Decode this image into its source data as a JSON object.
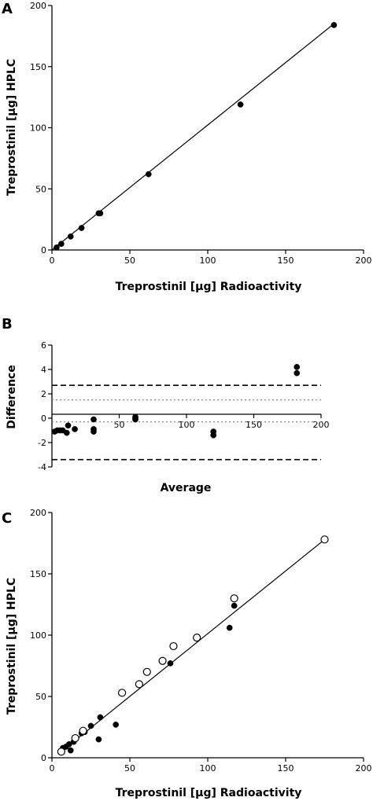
{
  "chart_data": [
    {
      "panel": "A",
      "type": "scatter",
      "xlabel": "Treprostinil [µg] Radioactivity",
      "ylabel": "Treprostinil [µg] HPLC",
      "xlim": [
        0,
        200
      ],
      "ylim": [
        0,
        200
      ],
      "xticks": [
        0,
        50,
        100,
        150,
        200
      ],
      "yticks": [
        0,
        50,
        100,
        150,
        200
      ],
      "grid": false,
      "fit_line": {
        "x": [
          0,
          180
        ],
        "y": [
          0,
          184
        ]
      },
      "series": [
        {
          "marker": "filled",
          "x": [
            3,
            6,
            12,
            19,
            30,
            31,
            62,
            121,
            181
          ],
          "y": [
            2,
            5,
            11,
            18,
            30,
            30,
            62,
            119,
            184
          ]
        }
      ]
    },
    {
      "panel": "B",
      "type": "scatter",
      "xlabel": "Average",
      "ylabel": "Difference",
      "xlim": [
        0,
        200
      ],
      "ylim": [
        -4,
        6
      ],
      "xticks": [
        50,
        100,
        150,
        200
      ],
      "yticks": [
        -4,
        -2,
        0,
        2,
        4,
        6
      ],
      "grid": false,
      "reference_lines": [
        {
          "y": 2.7,
          "style": "dashed"
        },
        {
          "y": 1.5,
          "style": "dotted"
        },
        {
          "y": -0.3,
          "style": "dotted"
        },
        {
          "y": -3.4,
          "style": "dashed"
        }
      ],
      "series": [
        {
          "marker": "filled",
          "x": [
            2,
            4,
            6,
            8,
            11,
            12,
            17,
            31,
            31,
            31,
            62,
            62,
            62,
            120,
            120,
            182,
            182
          ],
          "y": [
            -1.1,
            -1.0,
            -1.0,
            -1.0,
            -1.2,
            -0.6,
            -0.9,
            -0.1,
            -0.9,
            -1.1,
            0.1,
            0.0,
            -0.1,
            -1.1,
            -1.4,
            4.2,
            3.7
          ]
        }
      ]
    },
    {
      "panel": "C",
      "type": "scatter",
      "xlabel": "Treprostinil [µg] Radioactivity",
      "ylabel": "Treprostinil [µg] HPLC",
      "xlim": [
        0,
        200
      ],
      "ylim": [
        0,
        200
      ],
      "xticks": [
        0,
        50,
        100,
        150,
        200
      ],
      "yticks": [
        0,
        50,
        100,
        150,
        200
      ],
      "grid": false,
      "fit_line": {
        "x": [
          4,
          177
        ],
        "y": [
          3,
          180
        ]
      },
      "series": [
        {
          "marker": "filled",
          "x": [
            7,
            9,
            11,
            12,
            14,
            19,
            21,
            25,
            30,
            31,
            41,
            76,
            114,
            117
          ],
          "y": [
            8,
            9,
            11,
            6,
            13,
            20,
            21,
            26,
            15,
            33,
            27,
            77,
            106,
            124
          ]
        },
        {
          "marker": "open",
          "x": [
            6,
            15,
            20,
            45,
            56,
            61,
            71,
            78,
            93,
            117,
            175
          ],
          "y": [
            5,
            16,
            22,
            53,
            60,
            70,
            79,
            91,
            98,
            130,
            178
          ]
        }
      ]
    }
  ]
}
